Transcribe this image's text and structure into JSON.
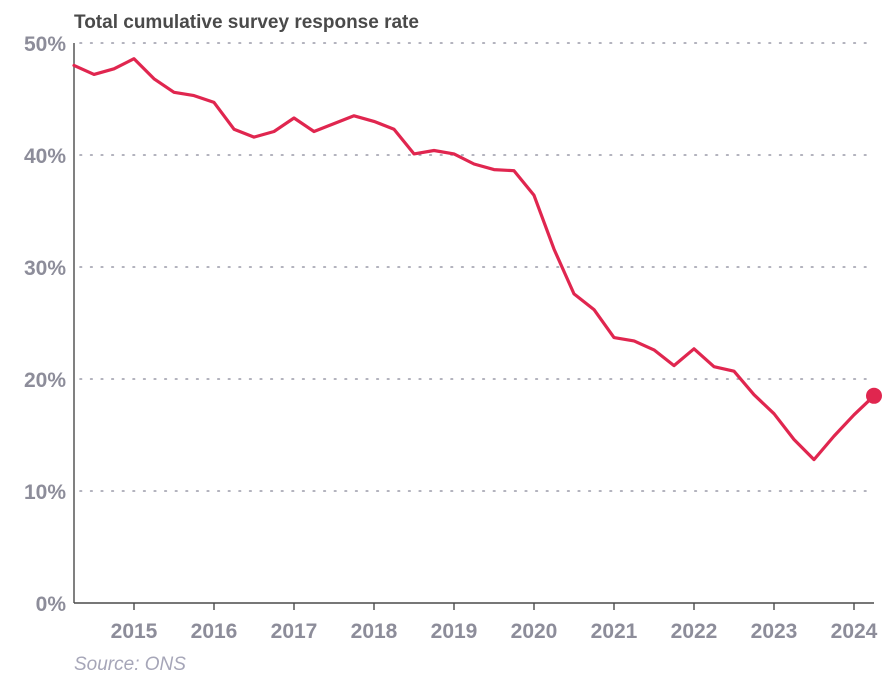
{
  "chart_data": {
    "type": "line",
    "title": "Total cumulative survey response rate",
    "source": "Source: ONS",
    "ylim": [
      0,
      50
    ],
    "xlim": [
      2014.25,
      2024.25
    ],
    "y_ticks": [
      0,
      10,
      20,
      30,
      40,
      50
    ],
    "y_tick_labels": [
      "0%",
      "10%",
      "20%",
      "30%",
      "40%",
      "50%"
    ],
    "x_ticks": [
      2015,
      2016,
      2017,
      2018,
      2019,
      2020,
      2021,
      2022,
      2023,
      2024
    ],
    "x_tick_labels": [
      "2015",
      "2016",
      "2017",
      "2018",
      "2019",
      "2020",
      "2021",
      "2022",
      "2023",
      "2024"
    ],
    "grid": true,
    "line_color": "#e0264f",
    "series": [
      {
        "x": [
          2014.25,
          2014.5,
          2014.75,
          2015.0,
          2015.25,
          2015.5,
          2015.75,
          2016.0,
          2016.25,
          2016.5,
          2016.75,
          2017.0,
          2017.25,
          2017.5,
          2017.75,
          2018.0,
          2018.25,
          2018.5,
          2018.75,
          2019.0,
          2019.25,
          2019.5,
          2019.75,
          2020.0,
          2020.25,
          2020.5,
          2020.75,
          2021.0,
          2021.25,
          2021.5,
          2021.75,
          2022.0,
          2022.25,
          2022.5,
          2022.75,
          2023.0,
          2023.25,
          2023.5,
          2023.75,
          2024.0,
          2024.25
        ],
        "values": [
          48.0,
          47.2,
          47.7,
          48.6,
          46.8,
          45.6,
          45.3,
          44.7,
          42.3,
          41.6,
          42.1,
          43.3,
          42.1,
          42.8,
          43.5,
          43.0,
          42.3,
          40.1,
          40.4,
          40.1,
          39.2,
          38.7,
          38.6,
          36.4,
          31.6,
          27.6,
          26.2,
          23.7,
          23.4,
          22.6,
          21.2,
          22.7,
          21.1,
          20.7,
          18.6,
          16.9,
          14.6,
          12.8,
          14.9,
          16.8,
          18.5
        ]
      }
    ]
  }
}
